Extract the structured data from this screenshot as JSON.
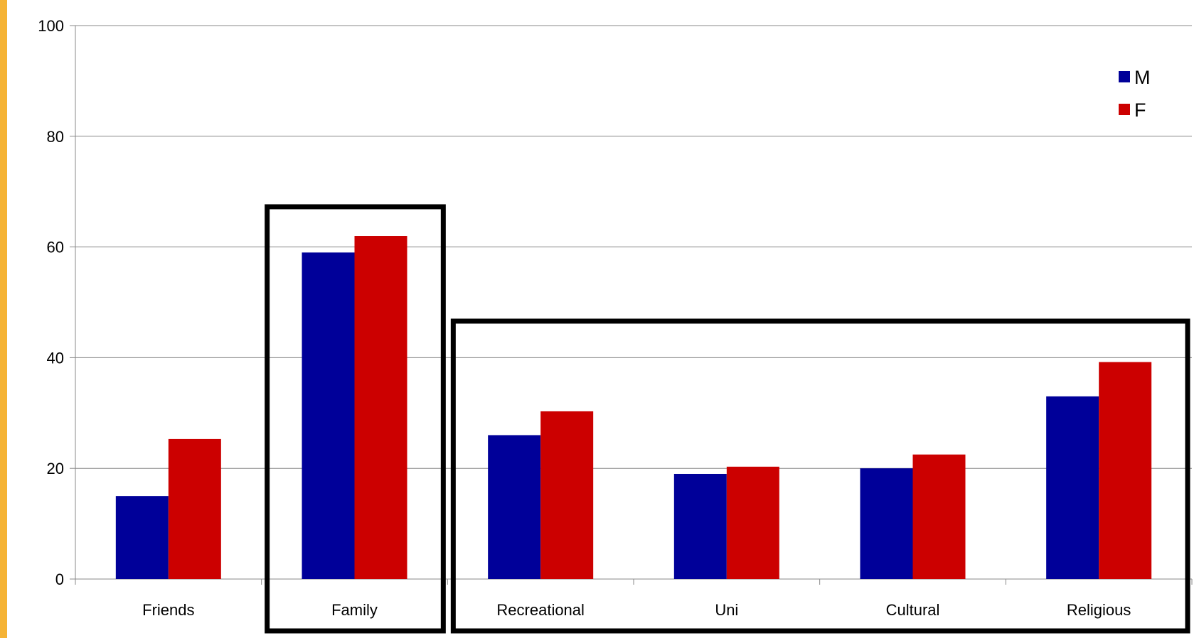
{
  "chart_data": {
    "type": "bar",
    "categories": [
      "Friends",
      "Family",
      "Recreational",
      "Uni",
      "Cultural",
      "Religious"
    ],
    "series": [
      {
        "name": "M",
        "color": "#000099",
        "values": [
          15,
          59,
          26,
          19,
          20,
          33
        ]
      },
      {
        "name": "F",
        "color": "#CC0000",
        "values": [
          25.3,
          62,
          30.3,
          20.3,
          22.5,
          39.2
        ]
      }
    ],
    "ylim": [
      0,
      100
    ],
    "yticks": [
      "0",
      "20",
      "40",
      "60",
      "80",
      "100"
    ],
    "grid": true,
    "legend_position": "top-right",
    "highlight_groups": [
      {
        "categories": [
          "Family"
        ]
      },
      {
        "categories": [
          "Recreational",
          "Uni",
          "Cultural",
          "Religious"
        ]
      }
    ],
    "title": "",
    "xlabel": "",
    "ylabel": ""
  }
}
